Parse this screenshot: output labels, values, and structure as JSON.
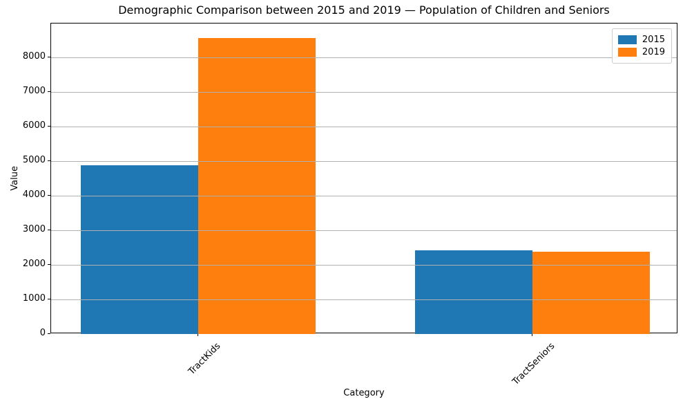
{
  "chart_data": {
    "type": "bar",
    "title": "Demographic Comparison between 2015 and 2019 — Population of Children and Seniors",
    "xlabel": "Category",
    "ylabel": "Value",
    "categories": [
      "TractKids",
      "TractSeniors"
    ],
    "series": [
      {
        "name": "2015",
        "color": "#1f77b4",
        "values": [
          4890,
          2420
        ]
      },
      {
        "name": "2019",
        "color": "#ff7f0e",
        "values": [
          8560,
          2390
        ]
      }
    ],
    "ylim": [
      0,
      8980
    ],
    "yticks": [
      0,
      1000,
      2000,
      3000,
      4000,
      5000,
      6000,
      7000,
      8000
    ],
    "grid": true,
    "gridline_color": "#b0b0b0",
    "legend_position": "upper right",
    "x_tick_rotation_deg": 45
  }
}
